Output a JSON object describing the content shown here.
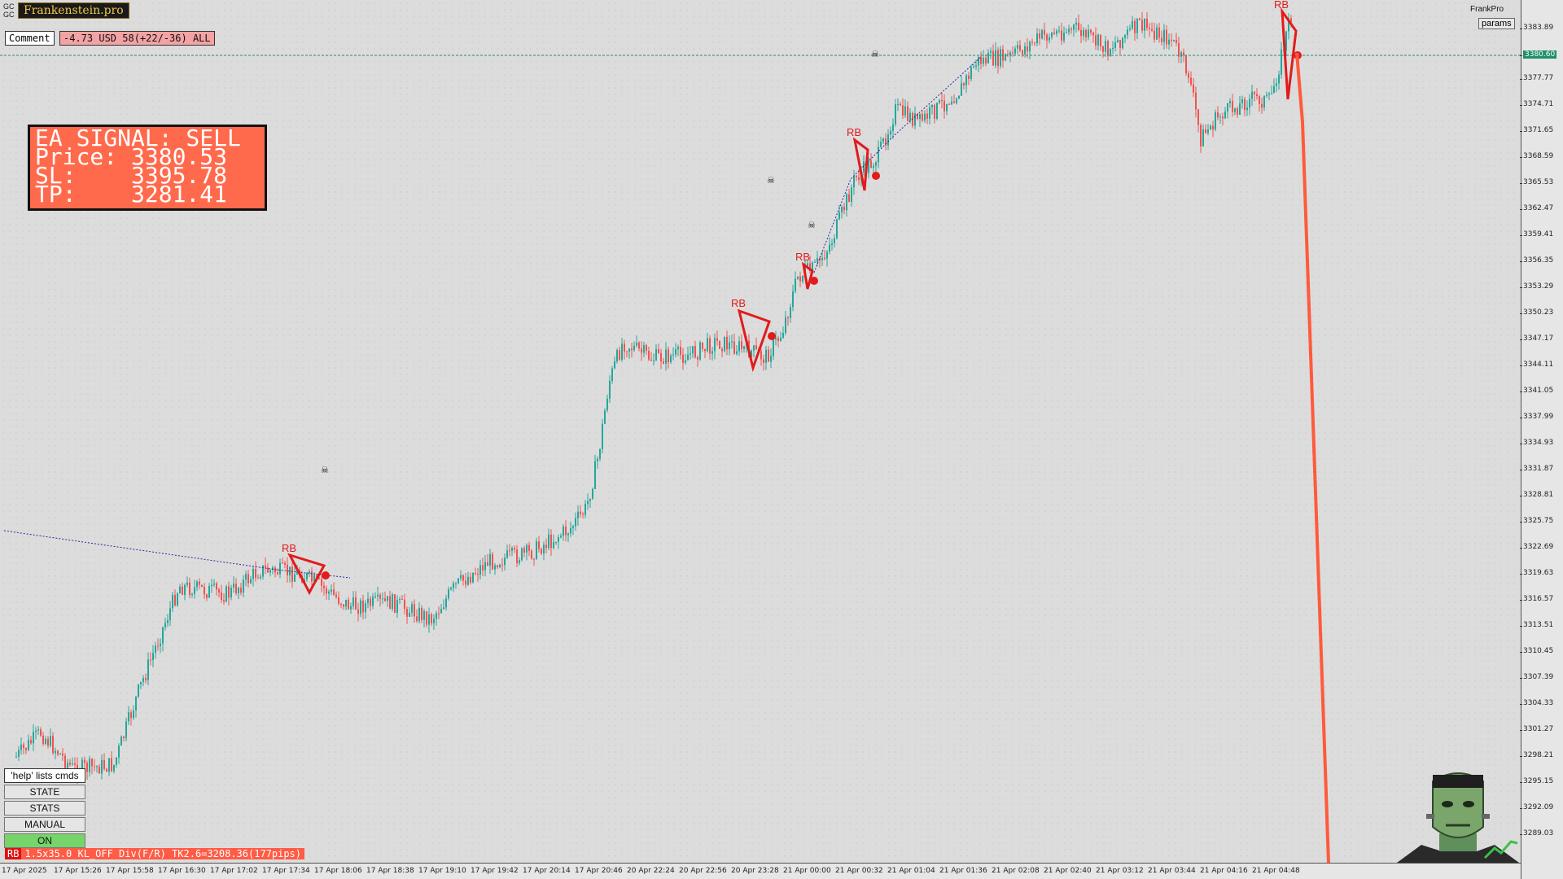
{
  "app": {
    "brand": "Frankenstein.pro",
    "symbol": "GC GC",
    "user": "FrankPro",
    "params_label": "params"
  },
  "comment": {
    "label": "Comment",
    "value": "-4.73 USD 58(+22/-36) ALL"
  },
  "signal_panel": {
    "line1": "EA SIGNAL: SELL",
    "line2": "Price: 3380.53",
    "line3": "SL:    3395.78",
    "line4": "TP:    3281.41"
  },
  "left_panel": {
    "help": "'help' lists cmds",
    "buttons": [
      "STATE",
      "STATS",
      "MANUAL",
      "ON"
    ]
  },
  "status_line": {
    "badge": "RB",
    "text": "1.5x35.0 KL_OFF Div(F/R) TK2.6=3208.36(177pips)"
  },
  "price_axis": {
    "ticks": [
      "3383.89",
      "3380.60",
      "3377.77",
      "3374.71",
      "3371.65",
      "3368.59",
      "3365.53",
      "3362.47",
      "3359.41",
      "3356.35",
      "3353.29",
      "3350.23",
      "3347.17",
      "3344.11",
      "3341.05",
      "3337.99",
      "3334.93",
      "3331.87",
      "3328.81",
      "3325.75",
      "3322.69",
      "3319.63",
      "3316.57",
      "3313.51",
      "3310.45",
      "3307.39",
      "3304.33",
      "3301.27",
      "3298.21",
      "3295.15",
      "3292.09",
      "3289.03"
    ],
    "current_price": "3380.60"
  },
  "time_axis": {
    "ticks": [
      "17 Apr 2025",
      "17 Apr 15:26",
      "17 Apr 15:58",
      "17 Apr 16:30",
      "17 Apr 17:02",
      "17 Apr 17:34",
      "17 Apr 18:06",
      "17 Apr 18:38",
      "17 Apr 19:10",
      "17 Apr 19:42",
      "17 Apr 20:14",
      "17 Apr 20:46",
      "20 Apr 22:24",
      "20 Apr 22:56",
      "20 Apr 23:28",
      "21 Apr 00:00",
      "21 Apr 00:32",
      "21 Apr 01:04",
      "21 Apr 01:36",
      "21 Apr 02:08",
      "21 Apr 02:40",
      "21 Apr 03:12",
      "21 Apr 03:44",
      "21 Apr 04:16",
      "21 Apr 04:48"
    ]
  },
  "annotations": {
    "pattern_label": "RB"
  },
  "colors": {
    "bull": "#26a69a",
    "bear": "#ef5350",
    "pattern": "#e21b1b",
    "signal_bg": "#ff6a4d",
    "tp_line": "#ff5a3c",
    "current_price_line": "#1f8f6a"
  }
}
